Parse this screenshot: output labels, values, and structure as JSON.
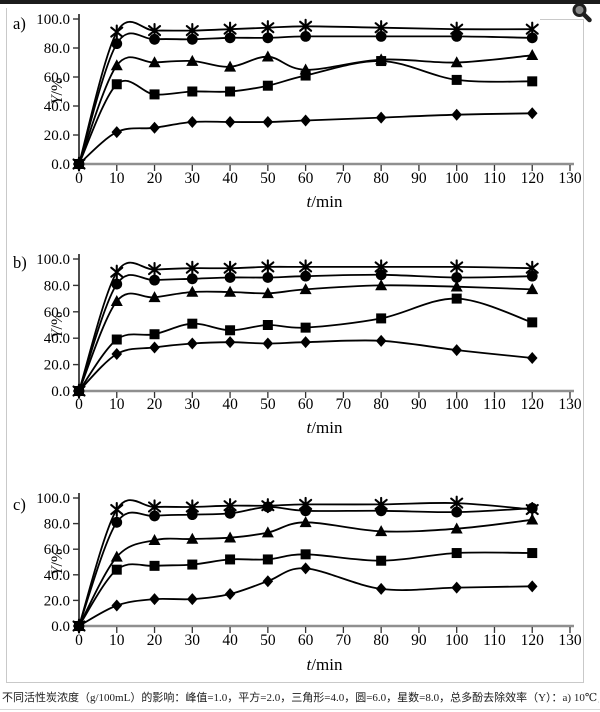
{
  "page": {
    "caption": "不同活性炭浓度（g/100mL）的影响：峰值=1.0，平方=2.0，三角形=4.0，圆=6.0，星数=8.0，总多酚去除效率（Y）：a) 10℃，b) 25℃，c) 40℃"
  },
  "icons": {
    "magnifier": "magnifier-zoom-icon"
  },
  "colors": {
    "line": "#000000",
    "x_axis": "#8f8f8f",
    "y_axis": "#000000",
    "frame": "#c9c9c9",
    "top_border": "#1c1c1c"
  },
  "chart_data": [
    {
      "type": "line",
      "panel_label": "a)",
      "condition": "10℃",
      "xlabel": "t/min",
      "ylabel": "Y/%",
      "xlim": [
        0,
        130
      ],
      "ylim": [
        0,
        100
      ],
      "x_ticks": [
        0,
        10,
        20,
        30,
        40,
        50,
        60,
        70,
        80,
        90,
        100,
        110,
        120,
        130
      ],
      "y_ticks": [
        0,
        20,
        40,
        60,
        80,
        100
      ],
      "y_tick_labels": [
        "0.0",
        "20.0",
        "40.0",
        "60.0",
        "80.0",
        "100.0"
      ],
      "grid": false,
      "legend": "none",
      "x": [
        0,
        10,
        20,
        30,
        40,
        50,
        60,
        80,
        100,
        120
      ],
      "series": [
        {
          "name": "峰值=1.0",
          "concentration_g_per_100mL": 1.0,
          "marker": "diamond",
          "values": [
            0,
            22,
            25,
            29,
            29,
            29,
            30,
            32,
            34,
            35
          ]
        },
        {
          "name": "平方=2.0",
          "concentration_g_per_100mL": 2.0,
          "marker": "square",
          "values": [
            0,
            55,
            48,
            50,
            50,
            54,
            61,
            71,
            58,
            57
          ]
        },
        {
          "name": "三角形=4.0",
          "concentration_g_per_100mL": 4.0,
          "marker": "triangle",
          "values": [
            0,
            68,
            70,
            71,
            67,
            74,
            65,
            72,
            70,
            75
          ]
        },
        {
          "name": "圆=6.0",
          "concentration_g_per_100mL": 6.0,
          "marker": "circle",
          "values": [
            0,
            83,
            86,
            86,
            87,
            87,
            88,
            88,
            88,
            87
          ]
        },
        {
          "name": "星数=8.0",
          "concentration_g_per_100mL": 8.0,
          "marker": "star",
          "values": [
            0,
            91,
            92,
            92,
            93,
            94,
            95,
            94,
            93,
            93
          ]
        }
      ]
    },
    {
      "type": "line",
      "panel_label": "b)",
      "condition": "25℃",
      "xlabel": "t/min",
      "ylabel": "Y/%",
      "xlim": [
        0,
        130
      ],
      "ylim": [
        0,
        100
      ],
      "x_ticks": [
        0,
        10,
        20,
        30,
        40,
        50,
        60,
        70,
        80,
        90,
        100,
        110,
        120,
        130
      ],
      "y_ticks": [
        0,
        20,
        40,
        60,
        80,
        100
      ],
      "y_tick_labels": [
        "0.0",
        "20.0",
        "40.0",
        "60.0",
        "80.0",
        "100.0"
      ],
      "grid": false,
      "legend": "none",
      "x": [
        0,
        10,
        20,
        30,
        40,
        50,
        60,
        80,
        100,
        120
      ],
      "series": [
        {
          "name": "峰值=1.0",
          "concentration_g_per_100mL": 1.0,
          "marker": "diamond",
          "values": [
            0,
            28,
            33,
            36,
            37,
            36,
            37,
            38,
            31,
            25
          ]
        },
        {
          "name": "平方=2.0",
          "concentration_g_per_100mL": 2.0,
          "marker": "square",
          "values": [
            0,
            39,
            43,
            51,
            46,
            50,
            48,
            55,
            70,
            52
          ]
        },
        {
          "name": "三角形=4.0",
          "concentration_g_per_100mL": 4.0,
          "marker": "triangle",
          "values": [
            0,
            68,
            71,
            75,
            75,
            74,
            77,
            80,
            79,
            77
          ]
        },
        {
          "name": "圆=6.0",
          "concentration_g_per_100mL": 6.0,
          "marker": "circle",
          "values": [
            0,
            81,
            84,
            85,
            86,
            86,
            87,
            88,
            86,
            87
          ]
        },
        {
          "name": "星数=8.0",
          "concentration_g_per_100mL": 8.0,
          "marker": "star",
          "values": [
            0,
            90,
            92,
            93,
            93,
            94,
            94,
            94,
            94,
            93
          ]
        }
      ]
    },
    {
      "type": "line",
      "panel_label": "c)",
      "condition": "40℃",
      "xlabel": "t/min",
      "ylabel": "Y/%",
      "xlim": [
        0,
        130
      ],
      "ylim": [
        0,
        100
      ],
      "x_ticks": [
        0,
        10,
        20,
        30,
        40,
        50,
        60,
        70,
        80,
        90,
        100,
        110,
        120,
        130
      ],
      "y_ticks": [
        0,
        20,
        40,
        60,
        80,
        100
      ],
      "y_tick_labels": [
        "0.0",
        "20.0",
        "40.0",
        "60.0",
        "80.0",
        "100.0"
      ],
      "grid": false,
      "legend": "none",
      "x": [
        0,
        10,
        20,
        30,
        40,
        50,
        60,
        80,
        100,
        120
      ],
      "series": [
        {
          "name": "峰值=1.0",
          "concentration_g_per_100mL": 1.0,
          "marker": "diamond",
          "values": [
            0,
            16,
            21,
            21,
            25,
            35,
            45,
            29,
            30,
            31
          ]
        },
        {
          "name": "平方=2.0",
          "concentration_g_per_100mL": 2.0,
          "marker": "square",
          "values": [
            0,
            44,
            47,
            48,
            52,
            52,
            56,
            51,
            57,
            57
          ]
        },
        {
          "name": "三角形=4.0",
          "concentration_g_per_100mL": 4.0,
          "marker": "triangle",
          "values": [
            0,
            54,
            67,
            68,
            69,
            73,
            81,
            74,
            76,
            83
          ]
        },
        {
          "name": "圆=6.0",
          "concentration_g_per_100mL": 6.0,
          "marker": "circle",
          "values": [
            0,
            81,
            86,
            87,
            88,
            93,
            90,
            90,
            89,
            92
          ]
        },
        {
          "name": "星数=8.0",
          "concentration_g_per_100mL": 8.0,
          "marker": "star",
          "values": [
            0,
            91,
            93,
            93,
            94,
            94,
            95,
            95,
            96,
            91
          ]
        }
      ]
    }
  ]
}
